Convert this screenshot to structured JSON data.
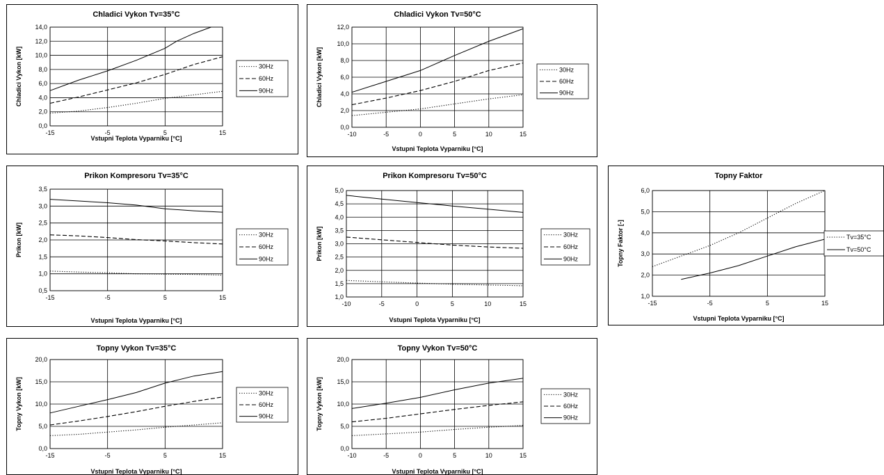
{
  "chart_data": [
    {
      "type": "line",
      "title": "Chladici Vykon Tv=35°C",
      "xlabel": "Vstupni Teplota Vyparniku [°C]",
      "ylabel": "Chladici Vykon [kW]",
      "xlim": [
        -15,
        15
      ],
      "ylim": [
        0,
        14
      ],
      "xticks": [
        -15,
        -5,
        5,
        15
      ],
      "xtick_labels": [
        "-15",
        "-5",
        "5",
        "15"
      ],
      "yticks": [
        0,
        2,
        4,
        6,
        8,
        10,
        12,
        14
      ],
      "ytick_labels": [
        "0,0",
        "2,0",
        "4,0",
        "6,0",
        "8,0",
        "10,0",
        "12,0",
        "14,0"
      ],
      "grid": true,
      "legend_position": "right",
      "series": [
        {
          "name": "30Hz",
          "style": "dotted",
          "x": [
            -15,
            -10,
            -5,
            0,
            5,
            10,
            15
          ],
          "y": [
            1.8,
            2.1,
            2.6,
            3.2,
            3.9,
            4.4,
            4.9
          ]
        },
        {
          "name": "60Hz",
          "style": "dashed",
          "x": [
            -15,
            -10,
            -5,
            0,
            5,
            10,
            15
          ],
          "y": [
            3.2,
            4.1,
            5.1,
            6.1,
            7.3,
            8.7,
            9.8
          ]
        },
        {
          "name": "90Hz",
          "style": "solid",
          "x": [
            -15,
            -10,
            -5,
            0,
            5,
            7,
            10,
            13
          ],
          "y": [
            5.0,
            6.5,
            7.8,
            9.3,
            11.0,
            12.0,
            13.1,
            14.0
          ]
        }
      ]
    },
    {
      "type": "line",
      "title": "Chladici Vykon Tv=50°C",
      "xlabel": "Vstupni Teplota Vyparniku [°C]",
      "ylabel": "Chladici Vykon [kW]",
      "xlim": [
        -10,
        15
      ],
      "ylim": [
        0,
        12
      ],
      "xticks": [
        -10,
        -5,
        0,
        5,
        10,
        15
      ],
      "xtick_labels": [
        "-10",
        "-5",
        "0",
        "5",
        "10",
        "15"
      ],
      "yticks": [
        0,
        2,
        4,
        6,
        8,
        10,
        12
      ],
      "ytick_labels": [
        "0,0",
        "2,0",
        "4,0",
        "6,0",
        "8,0",
        "10,0",
        "12,0"
      ],
      "grid": true,
      "legend_position": "right",
      "series": [
        {
          "name": "30Hz",
          "style": "dotted",
          "x": [
            -10,
            -5,
            0,
            5,
            10,
            15
          ],
          "y": [
            1.4,
            1.8,
            2.2,
            2.8,
            3.4,
            3.9
          ]
        },
        {
          "name": "60Hz",
          "style": "dashed",
          "x": [
            -10,
            -5,
            0,
            5,
            10,
            15
          ],
          "y": [
            2.7,
            3.5,
            4.4,
            5.5,
            6.8,
            7.7
          ]
        },
        {
          "name": "90Hz",
          "style": "solid",
          "x": [
            -10,
            -5,
            0,
            5,
            10,
            15
          ],
          "y": [
            4.2,
            5.5,
            6.8,
            8.6,
            10.3,
            11.8
          ]
        }
      ]
    },
    {
      "type": "line",
      "title": "Prikon Kompresoru Tv=35°C",
      "xlabel": "Vstupni Teplota Vyparniku [°C]",
      "ylabel": "Prikon [kW]",
      "xlim": [
        -15,
        15
      ],
      "ylim": [
        0.5,
        3.5
      ],
      "xticks": [
        -15,
        -5,
        5,
        15
      ],
      "xtick_labels": [
        "-15",
        "-5",
        "5",
        "15"
      ],
      "yticks": [
        0.5,
        1,
        1.5,
        2,
        2.5,
        3,
        3.5
      ],
      "ytick_labels": [
        "0,5",
        "1,0",
        "1,5",
        "2,0",
        "2,5",
        "3,0",
        "3,5"
      ],
      "grid": true,
      "legend_position": "right",
      "series": [
        {
          "name": "30Hz",
          "style": "dotted",
          "x": [
            -15,
            -10,
            -5,
            0,
            5,
            10,
            15
          ],
          "y": [
            1.08,
            1.05,
            1.03,
            1.0,
            0.99,
            0.98,
            0.96
          ]
        },
        {
          "name": "60Hz",
          "style": "dashed",
          "x": [
            -15,
            -10,
            -5,
            0,
            5,
            10,
            15
          ],
          "y": [
            2.15,
            2.12,
            2.07,
            2.01,
            1.97,
            1.92,
            1.88
          ]
        },
        {
          "name": "90Hz",
          "style": "solid",
          "x": [
            -15,
            -10,
            -5,
            0,
            5,
            10,
            15
          ],
          "y": [
            3.2,
            3.15,
            3.1,
            3.03,
            2.92,
            2.86,
            2.82
          ]
        }
      ]
    },
    {
      "type": "line",
      "title": "Prikon Kompresoru Tv=50°C",
      "xlabel": "Vstupni Teplota Vyparniku [°C]",
      "ylabel": "Prikon [kW]",
      "xlim": [
        -10,
        15
      ],
      "ylim": [
        1,
        5
      ],
      "xticks": [
        -10,
        -5,
        0,
        5,
        10,
        15
      ],
      "xtick_labels": [
        "-10",
        "-5",
        "0",
        "5",
        "10",
        "15"
      ],
      "yticks": [
        1,
        1.5,
        2,
        2.5,
        3,
        3.5,
        4,
        4.5,
        5
      ],
      "ytick_labels": [
        "1,0",
        "1,5",
        "2,0",
        "2,5",
        "3,0",
        "3,5",
        "4,0",
        "4,5",
        "5,0"
      ],
      "grid": true,
      "legend_position": "right",
      "series": [
        {
          "name": "30Hz",
          "style": "dotted",
          "x": [
            -10,
            -5,
            0,
            5,
            10,
            15
          ],
          "y": [
            1.62,
            1.57,
            1.52,
            1.48,
            1.45,
            1.42
          ]
        },
        {
          "name": "60Hz",
          "style": "dashed",
          "x": [
            -10,
            -5,
            0,
            5,
            10,
            15
          ],
          "y": [
            3.25,
            3.15,
            3.05,
            2.95,
            2.88,
            2.83
          ]
        },
        {
          "name": "90Hz",
          "style": "solid",
          "x": [
            -10,
            -5,
            0,
            5,
            10,
            15
          ],
          "y": [
            4.82,
            4.68,
            4.55,
            4.42,
            4.3,
            4.18
          ]
        }
      ]
    },
    {
      "type": "line",
      "title": "Topny Faktor",
      "xlabel": "Vstupni Teplota Vyparniku [°C]",
      "ylabel": "Topny Faktor [-]",
      "xlim": [
        -15,
        15
      ],
      "ylim": [
        1,
        6
      ],
      "xticks": [
        -15,
        -5,
        5,
        15
      ],
      "xtick_labels": [
        "-15",
        "-5",
        "5",
        "15"
      ],
      "yticks": [
        1,
        2,
        3,
        4,
        5,
        6
      ],
      "ytick_labels": [
        "1,0",
        "2,0",
        "3,0",
        "4,0",
        "5,0",
        "6,0"
      ],
      "grid": true,
      "legend_position": "right",
      "series": [
        {
          "name": "Tv=35°C",
          "style": "dotted",
          "x": [
            -15,
            -10,
            -5,
            0,
            5,
            10,
            15
          ],
          "y": [
            2.4,
            2.9,
            3.4,
            4.0,
            4.7,
            5.4,
            6.0
          ]
        },
        {
          "name": "Tv=50°C",
          "style": "solid",
          "x": [
            -10,
            -5,
            0,
            5,
            10,
            15
          ],
          "y": [
            1.8,
            2.1,
            2.45,
            2.9,
            3.35,
            3.7
          ]
        }
      ]
    },
    {
      "type": "line",
      "title": "Topny Vykon Tv=35°C",
      "xlabel": "Vstupni Teplota Vyparniku [°C]",
      "ylabel": "Topny Vykon [kW]",
      "xlim": [
        -15,
        15
      ],
      "ylim": [
        0,
        20
      ],
      "xticks": [
        -15,
        -5,
        5,
        15
      ],
      "xtick_labels": [
        "-15",
        "-5",
        "5",
        "15"
      ],
      "yticks": [
        0,
        5,
        10,
        15,
        20
      ],
      "ytick_labels": [
        "0,0",
        "5,0",
        "10,0",
        "15,0",
        "20,0"
      ],
      "grid": true,
      "legend_position": "right",
      "series": [
        {
          "name": "30Hz",
          "style": "dotted",
          "x": [
            -15,
            -10,
            -5,
            0,
            5,
            10,
            15
          ],
          "y": [
            2.9,
            3.2,
            3.7,
            4.2,
            4.8,
            5.3,
            5.8
          ]
        },
        {
          "name": "60Hz",
          "style": "dashed",
          "x": [
            -15,
            -10,
            -5,
            0,
            5,
            10,
            15
          ],
          "y": [
            5.3,
            6.2,
            7.2,
            8.3,
            9.5,
            10.6,
            11.6
          ]
        },
        {
          "name": "90Hz",
          "style": "solid",
          "x": [
            -15,
            -10,
            -5,
            0,
            5,
            10,
            15
          ],
          "y": [
            8.0,
            9.5,
            11.0,
            12.6,
            14.7,
            16.3,
            17.3
          ]
        }
      ]
    },
    {
      "type": "line",
      "title": "Topny Vykon Tv=50°C",
      "xlabel": "Vstupni Teplota Vyparniku [°C]",
      "ylabel": "Topny Vykon [kW]",
      "xlim": [
        -10,
        15
      ],
      "ylim": [
        0,
        20
      ],
      "xticks": [
        -10,
        -5,
        0,
        5,
        10,
        15
      ],
      "xtick_labels": [
        "-10",
        "-5",
        "0",
        "5",
        "10",
        "15"
      ],
      "yticks": [
        0,
        5,
        10,
        15,
        20
      ],
      "ytick_labels": [
        "0,0",
        "5,0",
        "10,0",
        "15,0",
        "20,0"
      ],
      "grid": true,
      "legend_position": "right",
      "series": [
        {
          "name": "30Hz",
          "style": "dotted",
          "x": [
            -10,
            -5,
            0,
            5,
            10,
            15
          ],
          "y": [
            2.9,
            3.3,
            3.7,
            4.3,
            4.8,
            5.2
          ]
        },
        {
          "name": "60Hz",
          "style": "dashed",
          "x": [
            -10,
            -5,
            0,
            5,
            10,
            15
          ],
          "y": [
            6.0,
            6.8,
            7.8,
            8.8,
            9.7,
            10.5
          ]
        },
        {
          "name": "90Hz",
          "style": "solid",
          "x": [
            -10,
            -5,
            0,
            5,
            10,
            15
          ],
          "y": [
            9.0,
            10.2,
            11.5,
            13.2,
            14.7,
            15.8
          ]
        }
      ]
    }
  ]
}
